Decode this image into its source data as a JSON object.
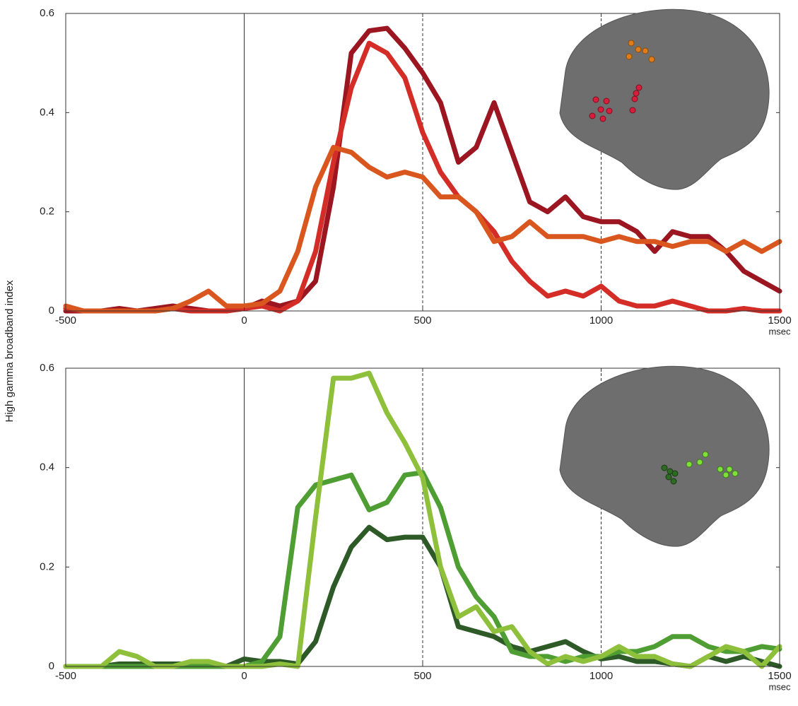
{
  "chart_data": [
    {
      "type": "line",
      "ylabel": "High gamma broadband index",
      "xlabel": "msec",
      "x": [
        -500,
        -450,
        -400,
        -350,
        -300,
        -250,
        -200,
        -150,
        -100,
        -50,
        0,
        50,
        100,
        150,
        200,
        250,
        300,
        350,
        400,
        450,
        500,
        550,
        600,
        650,
        700,
        750,
        800,
        850,
        900,
        950,
        1000,
        1050,
        1100,
        1150,
        1200,
        1250,
        1300,
        1350,
        1400,
        1450,
        1500
      ],
      "series": [
        {
          "color": "#9b1620",
          "values": [
            0,
            0,
            0,
            0.005,
            0,
            0.005,
            0.01,
            0.005,
            0,
            0,
            0.005,
            0.02,
            0.01,
            0.02,
            0.06,
            0.25,
            0.52,
            0.565,
            0.57,
            0.53,
            0.48,
            0.42,
            0.3,
            0.33,
            0.42,
            0.32,
            0.22,
            0.2,
            0.23,
            0.19,
            0.18,
            0.18,
            0.16,
            0.12,
            0.16,
            0.15,
            0.15,
            0.12,
            0.08,
            0.06,
            0.04
          ]
        },
        {
          "color": "#d42d27",
          "values": [
            0.005,
            0,
            0,
            0,
            0,
            0,
            0.005,
            0,
            0,
            0,
            0.005,
            0.01,
            0,
            0.02,
            0.12,
            0.3,
            0.45,
            0.54,
            0.52,
            0.47,
            0.36,
            0.28,
            0.23,
            0.2,
            0.16,
            0.1,
            0.06,
            0.03,
            0.04,
            0.03,
            0.05,
            0.02,
            0.01,
            0.01,
            0.02,
            0.01,
            0,
            0,
            0.005,
            0,
            0
          ]
        },
        {
          "color": "#d9571e",
          "values": [
            0.01,
            0,
            0,
            0,
            0,
            0,
            0.005,
            0.02,
            0.04,
            0.01,
            0.01,
            0.015,
            0.04,
            0.12,
            0.25,
            0.33,
            0.32,
            0.29,
            0.27,
            0.28,
            0.27,
            0.23,
            0.23,
            0.2,
            0.14,
            0.15,
            0.18,
            0.15,
            0.15,
            0.15,
            0.14,
            0.15,
            0.14,
            0.14,
            0.13,
            0.14,
            0.14,
            0.12,
            0.14,
            0.12,
            0.14
          ]
        }
      ],
      "xlim": [
        -500,
        1500
      ],
      "xticks": [
        -500,
        0,
        500,
        1000,
        1500
      ],
      "ylim": [
        0,
        0.6
      ],
      "yticks": [
        0,
        0.2,
        0.4,
        0.6
      ],
      "vlines": [
        0
      ],
      "dashed_vlines": [
        500,
        1000
      ]
    },
    {
      "type": "line",
      "xlabel": "msec",
      "x": [
        -500,
        -450,
        -400,
        -350,
        -300,
        -250,
        -200,
        -150,
        -100,
        -50,
        0,
        50,
        100,
        150,
        200,
        250,
        300,
        350,
        400,
        450,
        500,
        550,
        600,
        650,
        700,
        750,
        800,
        850,
        900,
        950,
        1000,
        1050,
        1100,
        1150,
        1200,
        1250,
        1300,
        1350,
        1400,
        1450,
        1500
      ],
      "series": [
        {
          "color": "#2d5a27",
          "values": [
            0,
            0,
            0,
            0.005,
            0.005,
            0.005,
            0.005,
            0.005,
            0,
            0,
            0.015,
            0.01,
            0.01,
            0.005,
            0.05,
            0.16,
            0.24,
            0.28,
            0.255,
            0.26,
            0.26,
            0.2,
            0.08,
            0.07,
            0.06,
            0.04,
            0.03,
            0.04,
            0.05,
            0.03,
            0.015,
            0.02,
            0.01,
            0.01,
            0.005,
            0,
            0.02,
            0.01,
            0.02,
            0.01,
            0
          ]
        },
        {
          "color": "#4f9e33",
          "values": [
            0,
            0,
            0,
            0,
            0,
            0,
            0,
            0,
            0,
            0,
            0,
            0.01,
            0.06,
            0.32,
            0.365,
            0.375,
            0.385,
            0.315,
            0.33,
            0.385,
            0.39,
            0.32,
            0.2,
            0.14,
            0.1,
            0.03,
            0.02,
            0.02,
            0.01,
            0.02,
            0.02,
            0.03,
            0.03,
            0.04,
            0.06,
            0.06,
            0.04,
            0.03,
            0.03,
            0.04,
            0.035
          ]
        },
        {
          "color": "#8fc03c",
          "values": [
            0,
            0,
            0,
            0.03,
            0.02,
            0,
            0,
            0.01,
            0.01,
            0,
            0,
            0,
            0.005,
            0,
            0.3,
            0.58,
            0.58,
            0.59,
            0.51,
            0.45,
            0.38,
            0.2,
            0.1,
            0.12,
            0.07,
            0.08,
            0.03,
            0.005,
            0.02,
            0.01,
            0.02,
            0.04,
            0.02,
            0.02,
            0.005,
            0,
            0.02,
            0.04,
            0.03,
            0,
            0.04
          ]
        }
      ],
      "xlim": [
        -500,
        1500
      ],
      "xticks": [
        -500,
        0,
        500,
        1000,
        1500
      ],
      "ylim": [
        0,
        0.6
      ],
      "yticks": [
        0,
        0.2,
        0.4,
        0.6
      ],
      "vlines": [
        0
      ],
      "dashed_vlines": [
        500,
        1000
      ]
    }
  ]
}
